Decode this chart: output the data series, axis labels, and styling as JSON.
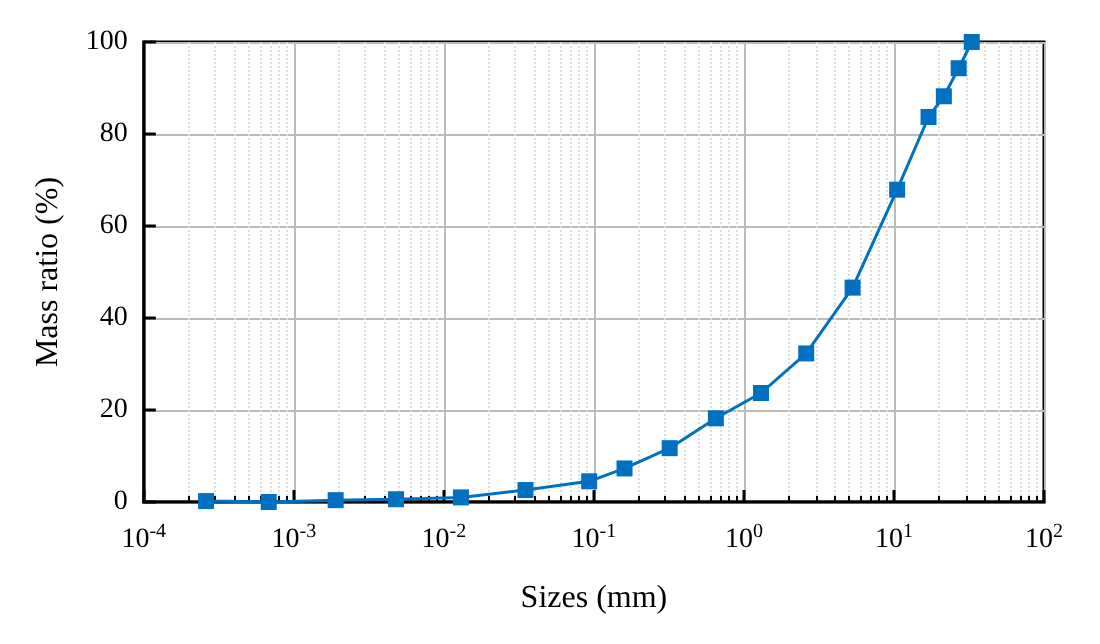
{
  "chart_data": {
    "type": "line",
    "xlabel": "Sizes (mm)",
    "ylabel": "Mass ratio (%)",
    "log": "x",
    "grid": true,
    "marker": "square",
    "line_style": "solid",
    "xlim": [
      0.0001,
      100
    ],
    "xticks": [
      {
        "value": 0.0001,
        "label": "10$^{-4}$"
      },
      {
        "value": 0.001,
        "label": "10$^{-3}$"
      },
      {
        "value": 0.01,
        "label": "10$^{-2}$"
      },
      {
        "value": 0.1,
        "label": "10$^{-1}$"
      },
      {
        "value": 1,
        "label": "10$^{0}$"
      },
      {
        "value": 10,
        "label": "10$^{1}$"
      },
      {
        "value": 100,
        "label": "10$^{2}$"
      }
    ],
    "ylim": [
      0,
      100
    ],
    "yticks": [
      0,
      20,
      40,
      60,
      80,
      100
    ],
    "series": [
      {
        "color": "#0070c0",
        "x": [
          0.00026,
          0.00068,
          0.0019,
          0.0048,
          0.013,
          0.035,
          0.093,
          0.16,
          0.32,
          0.65,
          1.3,
          2.6,
          5.3,
          10.5,
          17,
          21.5,
          27,
          33
        ],
        "values": [
          0.2,
          0,
          0.4,
          0.6,
          1.0,
          2.6,
          4.5,
          7.3,
          11.7,
          18.2,
          23.7,
          32.3,
          46.6,
          67.9,
          83.7,
          88.2,
          94.3,
          100
        ]
      }
    ]
  }
}
